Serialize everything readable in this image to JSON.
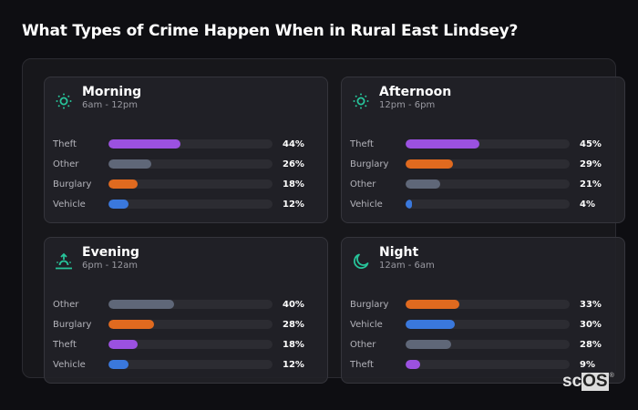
{
  "page": {
    "title": "What Types of Crime Happen When in Rural East Lindsey?"
  },
  "colors": {
    "accent_icon": "#27c49a",
    "Theft": "#9b51e0",
    "Other": "#5f6778",
    "Burglary": "#e06a1f",
    "Vehicle": "#3a78dc",
    "track": "#2c2c32"
  },
  "cards": [
    {
      "title": "Morning",
      "subtitle": "6am - 12pm",
      "icon": "sun-icon",
      "rows": [
        {
          "label": "Theft",
          "value": 44,
          "value_text": "44%"
        },
        {
          "label": "Other",
          "value": 26,
          "value_text": "26%"
        },
        {
          "label": "Burglary",
          "value": 18,
          "value_text": "18%"
        },
        {
          "label": "Vehicle",
          "value": 12,
          "value_text": "12%"
        }
      ]
    },
    {
      "title": "Afternoon",
      "subtitle": "12pm - 6pm",
      "icon": "sun-icon",
      "rows": [
        {
          "label": "Theft",
          "value": 45,
          "value_text": "45%"
        },
        {
          "label": "Burglary",
          "value": 29,
          "value_text": "29%"
        },
        {
          "label": "Other",
          "value": 21,
          "value_text": "21%"
        },
        {
          "label": "Vehicle",
          "value": 4,
          "value_text": "4%"
        }
      ]
    },
    {
      "title": "Evening",
      "subtitle": "6pm - 12am",
      "icon": "sunset-icon",
      "rows": [
        {
          "label": "Other",
          "value": 40,
          "value_text": "40%"
        },
        {
          "label": "Burglary",
          "value": 28,
          "value_text": "28%"
        },
        {
          "label": "Theft",
          "value": 18,
          "value_text": "18%"
        },
        {
          "label": "Vehicle",
          "value": 12,
          "value_text": "12%"
        }
      ]
    },
    {
      "title": "Night",
      "subtitle": "12am - 6am",
      "icon": "moon-icon",
      "rows": [
        {
          "label": "Burglary",
          "value": 33,
          "value_text": "33%"
        },
        {
          "label": "Vehicle",
          "value": 30,
          "value_text": "30%"
        },
        {
          "label": "Other",
          "value": 28,
          "value_text": "28%"
        },
        {
          "label": "Theft",
          "value": 9,
          "value_text": "9%"
        }
      ]
    }
  ],
  "logo": {
    "part1": "sc",
    "part2": "OS",
    "mark": "®"
  }
}
